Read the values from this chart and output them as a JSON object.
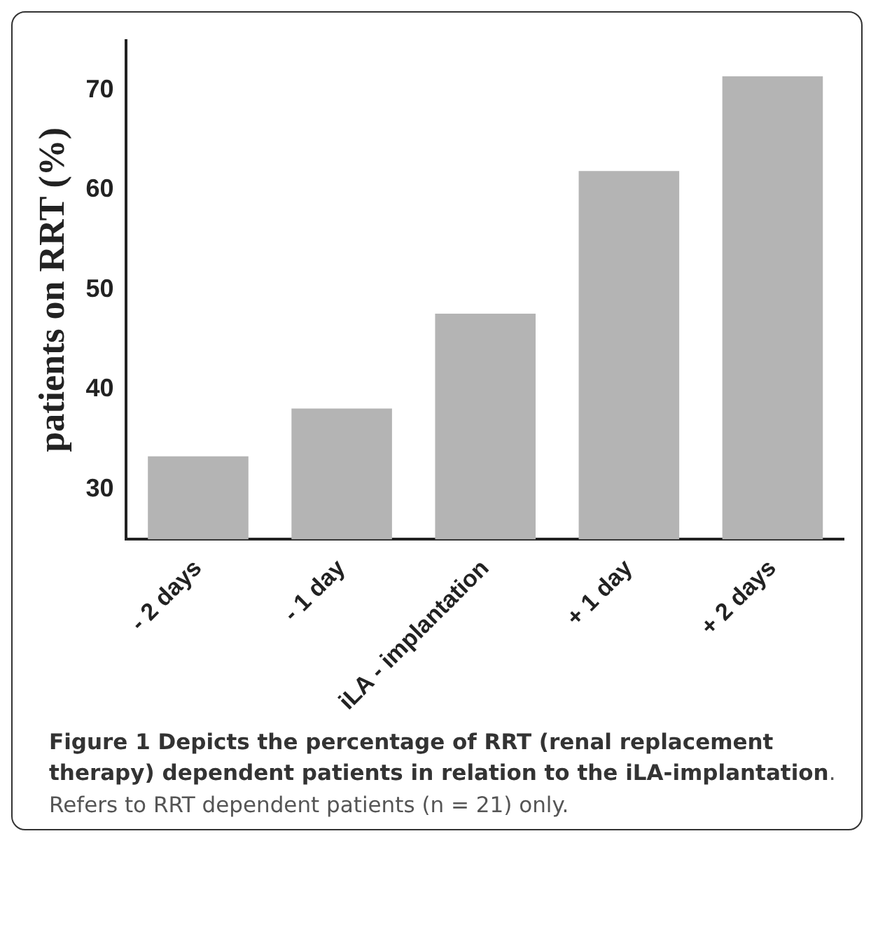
{
  "chart_data": {
    "type": "bar",
    "title": "Figure 1 Depicts the percentage of RRT (renal replacement therapy) dependent patients in relation to the iLA-implantation",
    "annotations": [
      ". Refers to RRT dependent patients (n = 21) only."
    ],
    "ylabel": "patients on RRT (%)",
    "categories": [
      "- 2 days",
      "- 1 day",
      "iLA - implantation",
      "+ 1 day",
      "+ 2 days"
    ],
    "values": [
      33.3,
      38.1,
      47.6,
      61.9,
      71.4
    ],
    "color": "#b4b4b4",
    "ylim": [
      25,
      75
    ],
    "yticks": [
      30,
      40,
      50,
      60,
      70
    ],
    "grid": false,
    "legend": false
  }
}
